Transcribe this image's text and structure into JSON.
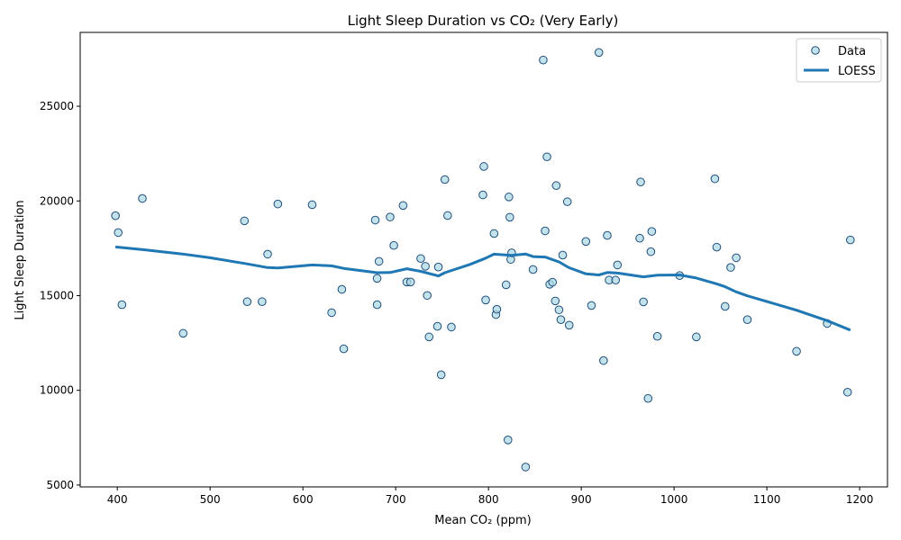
{
  "chart_data": {
    "type": "scatter",
    "title": "Light Sleep Duration vs CO₂ (Very Early)",
    "xlabel": "Mean CO₂ (ppm)",
    "ylabel": "Light Sleep Duration",
    "xlim": [
      360,
      1230
    ],
    "ylim": [
      4900,
      28900
    ],
    "xticks": [
      400,
      500,
      600,
      700,
      800,
      900,
      1000,
      1100,
      1200
    ],
    "yticks": [
      5000,
      10000,
      15000,
      20000,
      25000
    ],
    "grid": false,
    "legend_position": "top-right",
    "colors": {
      "point_fill": "#add8e6",
      "point_edge": "#1f4e79",
      "line": "#1f77b4"
    },
    "legend": [
      {
        "label": "Data",
        "kind": "marker"
      },
      {
        "label": "LOESS",
        "kind": "line"
      }
    ],
    "series": [
      {
        "name": "Data",
        "kind": "scatter",
        "points": [
          [
            398,
            19220
          ],
          [
            401,
            18330
          ],
          [
            405,
            14520
          ],
          [
            427,
            20130
          ],
          [
            471,
            13010
          ],
          [
            537,
            18950
          ],
          [
            540,
            14680
          ],
          [
            556,
            14680
          ],
          [
            562,
            17190
          ],
          [
            573,
            19840
          ],
          [
            610,
            19800
          ],
          [
            631,
            14100
          ],
          [
            642,
            15330
          ],
          [
            644,
            12190
          ],
          [
            678,
            18990
          ],
          [
            680,
            15910
          ],
          [
            680,
            14520
          ],
          [
            682,
            16810
          ],
          [
            694,
            19150
          ],
          [
            698,
            17650
          ],
          [
            708,
            19760
          ],
          [
            712,
            15720
          ],
          [
            716,
            15720
          ],
          [
            727,
            16960
          ],
          [
            732,
            16550
          ],
          [
            734,
            15010
          ],
          [
            736,
            12820
          ],
          [
            745,
            13380
          ],
          [
            746,
            16510
          ],
          [
            749,
            10820
          ],
          [
            753,
            21130
          ],
          [
            756,
            19230
          ],
          [
            760,
            13340
          ],
          [
            794,
            20320
          ],
          [
            795,
            21820
          ],
          [
            797,
            14770
          ],
          [
            806,
            18280
          ],
          [
            808,
            14000
          ],
          [
            809,
            14280
          ],
          [
            819,
            15570
          ],
          [
            821,
            7380
          ],
          [
            822,
            20210
          ],
          [
            823,
            19140
          ],
          [
            824,
            16910
          ],
          [
            825,
            17260
          ],
          [
            840,
            5950
          ],
          [
            848,
            16380
          ],
          [
            859,
            27440
          ],
          [
            861,
            18420
          ],
          [
            863,
            22330
          ],
          [
            866,
            15600
          ],
          [
            869,
            15710
          ],
          [
            872,
            14720
          ],
          [
            873,
            20810
          ],
          [
            876,
            14250
          ],
          [
            878,
            13730
          ],
          [
            880,
            17140
          ],
          [
            885,
            19960
          ],
          [
            887,
            13440
          ],
          [
            905,
            17860
          ],
          [
            911,
            14480
          ],
          [
            924,
            11570
          ],
          [
            928,
            18180
          ],
          [
            930,
            15820
          ],
          [
            937,
            15820
          ],
          [
            939,
            16620
          ],
          [
            919,
            27840
          ],
          [
            963,
            18030
          ],
          [
            964,
            21000
          ],
          [
            967,
            14670
          ],
          [
            972,
            9570
          ],
          [
            975,
            17320
          ],
          [
            976,
            18390
          ],
          [
            982,
            12850
          ],
          [
            1006,
            16060
          ],
          [
            1024,
            12820
          ],
          [
            1044,
            21170
          ],
          [
            1046,
            17560
          ],
          [
            1055,
            14430
          ],
          [
            1061,
            16490
          ],
          [
            1067,
            17000
          ],
          [
            1079,
            13730
          ],
          [
            1132,
            12060
          ],
          [
            1165,
            13530
          ],
          [
            1187,
            9900
          ],
          [
            1190,
            17940
          ]
        ]
      },
      {
        "name": "LOESS",
        "kind": "line",
        "points": [
          [
            398,
            17570
          ],
          [
            430,
            17420
          ],
          [
            470,
            17200
          ],
          [
            500,
            17000
          ],
          [
            537,
            16700
          ],
          [
            562,
            16480
          ],
          [
            573,
            16460
          ],
          [
            610,
            16620
          ],
          [
            631,
            16570
          ],
          [
            644,
            16440
          ],
          [
            680,
            16210
          ],
          [
            694,
            16220
          ],
          [
            712,
            16420
          ],
          [
            727,
            16280
          ],
          [
            746,
            16040
          ],
          [
            753,
            16210
          ],
          [
            780,
            16650
          ],
          [
            797,
            16980
          ],
          [
            806,
            17190
          ],
          [
            825,
            17130
          ],
          [
            840,
            17200
          ],
          [
            848,
            17060
          ],
          [
            861,
            17040
          ],
          [
            876,
            16780
          ],
          [
            887,
            16470
          ],
          [
            905,
            16150
          ],
          [
            919,
            16090
          ],
          [
            928,
            16220
          ],
          [
            939,
            16190
          ],
          [
            967,
            15990
          ],
          [
            982,
            16080
          ],
          [
            1006,
            16090
          ],
          [
            1024,
            15930
          ],
          [
            1046,
            15620
          ],
          [
            1055,
            15470
          ],
          [
            1067,
            15200
          ],
          [
            1079,
            14990
          ],
          [
            1132,
            14230
          ],
          [
            1165,
            13680
          ],
          [
            1190,
            13180
          ]
        ]
      }
    ]
  }
}
